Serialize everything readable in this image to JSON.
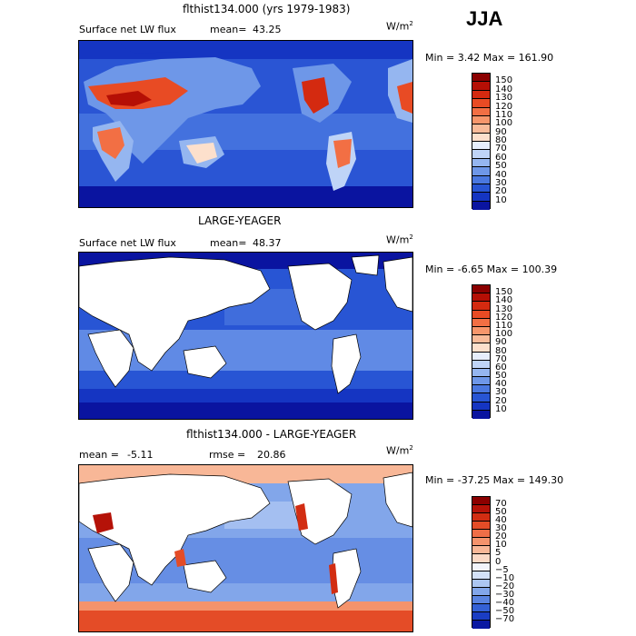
{
  "season": "JJA",
  "units_base": "W/m",
  "units_exp": "2",
  "panels": [
    {
      "title": "flthist134.000 (yrs 1979-1983)",
      "left_label": "Surface net LW flux",
      "stat_label": "mean=",
      "stat_value": "43.25",
      "rmse_label": "",
      "rmse_value": "",
      "minmax": "Min =    3.42 Max = 161.90",
      "colorbar_ticks": [
        "150",
        "140",
        "130",
        "120",
        "110",
        "100",
        "90",
        "80",
        "70",
        "60",
        "50",
        "40",
        "30",
        "20",
        "10"
      ],
      "colorbar_colors": [
        "#8b0000",
        "#b50f05",
        "#d42a10",
        "#e84b24",
        "#f26f44",
        "#f7966b",
        "#f9bb99",
        "#fde0cc",
        "#e6eefc",
        "#bfd4f7",
        "#95b6f0",
        "#6e97e8",
        "#4a78e0",
        "#2855d4",
        "#1535c2",
        "#0a14a0"
      ],
      "map_fill": "ocean"
    },
    {
      "title": "LARGE-YEAGER",
      "left_label": "Surface net LW flux",
      "stat_label": "mean=",
      "stat_value": "48.37",
      "rmse_label": "",
      "rmse_value": "",
      "minmax": "Min =  -6.65 Max = 100.39",
      "colorbar_ticks": [
        "150",
        "140",
        "130",
        "120",
        "110",
        "100",
        "90",
        "80",
        "70",
        "60",
        "50",
        "40",
        "30",
        "20",
        "10"
      ],
      "colorbar_colors": [
        "#8b0000",
        "#b50f05",
        "#d42a10",
        "#e84b24",
        "#f26f44",
        "#f7966b",
        "#f9bb99",
        "#fde0cc",
        "#e6eefc",
        "#bfd4f7",
        "#95b6f0",
        "#6e97e8",
        "#4a78e0",
        "#2855d4",
        "#1535c2",
        "#0a14a0"
      ],
      "map_fill": "ocean"
    },
    {
      "title": "flthist134.000 - LARGE-YEAGER",
      "left_label": "",
      "stat_label": "mean =",
      "stat_value": "-5.11",
      "rmse_label": "rmse =",
      "rmse_value": "20.86",
      "minmax": "Min = -37.25 Max = 149.30",
      "colorbar_ticks": [
        "70",
        "50",
        "40",
        "30",
        "20",
        "10",
        "5",
        "0",
        "−5",
        "−10",
        "−20",
        "−30",
        "−40",
        "−50",
        "−70"
      ],
      "colorbar_colors": [
        "#8b0000",
        "#b51208",
        "#d22d12",
        "#e44c27",
        "#ee6e47",
        "#f4936c",
        "#f8b797",
        "#fbd9c6",
        "#f2f4fb",
        "#d3e1f8",
        "#acc6f2",
        "#82a6ea",
        "#5a84e1",
        "#3461d6",
        "#1a3dc4",
        "#0a18a2"
      ],
      "map_fill": "diff"
    }
  ]
}
